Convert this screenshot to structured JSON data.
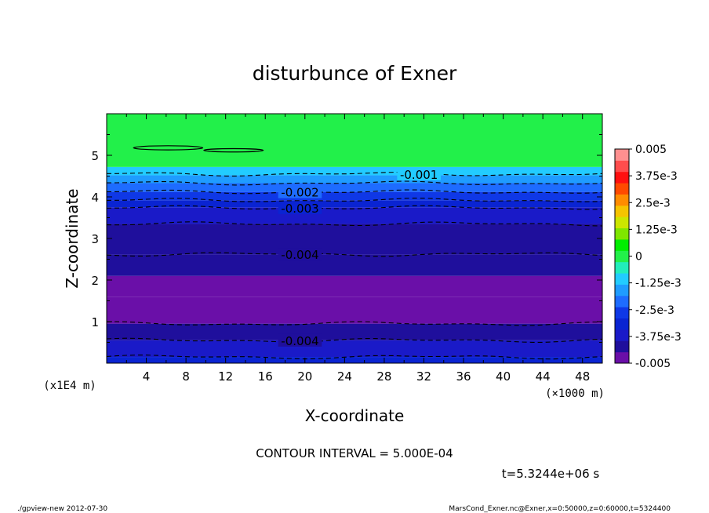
{
  "chart_data": {
    "type": "heatmap",
    "title": "disturbunce of Exner",
    "xlabel": "X-coordinate",
    "ylabel": "Z-coordinate",
    "x_unit": "(×1000 m)",
    "y_unit": "(x1E4 m)",
    "xlim": [
      0,
      50
    ],
    "ylim": [
      0,
      6
    ],
    "x_ticks": [
      "4",
      "8",
      "12",
      "16",
      "20",
      "24",
      "28",
      "32",
      "36",
      "40",
      "44",
      "48"
    ],
    "y_ticks": [
      "1",
      "2",
      "3",
      "4",
      "5"
    ],
    "grid": false,
    "colorbar": {
      "placement": "right",
      "range": [
        -0.005,
        0.005
      ],
      "labels": [
        "0.005",
        "3.75e-3",
        "2.5e-3",
        "1.25e-3",
        "0",
        "-1.25e-3",
        "-2.5e-3",
        "-3.75e-3",
        "-0.005"
      ],
      "colors": [
        "#6a0fa8",
        "#1f0f9c",
        "#1a1ac8",
        "#0a24d2",
        "#0f38e6",
        "#1e6cff",
        "#1f9cff",
        "#22ccff",
        "#22eebb",
        "#22f04a",
        "#00ee00",
        "#7fe600",
        "#cce600",
        "#f5c400",
        "#ff8c00",
        "#ff4a00",
        "#ff1010",
        "#ff4d4d",
        "#ff9090"
      ]
    },
    "bands": [
      {
        "z_min": 0.0,
        "z_max": 0.15,
        "value": -0.003
      },
      {
        "z_min": 0.15,
        "z_max": 0.55,
        "value": -0.0035
      },
      {
        "z_min": 0.55,
        "z_max": 0.95,
        "value": -0.004
      },
      {
        "z_min": 0.95,
        "z_max": 1.6,
        "value": -0.005
      },
      {
        "z_min": 1.6,
        "z_max": 2.1,
        "value": -0.0045
      },
      {
        "z_min": 2.1,
        "z_max": 2.62,
        "value": -0.0043
      },
      {
        "z_min": 2.62,
        "z_max": 3.35,
        "value": -0.004
      },
      {
        "z_min": 3.35,
        "z_max": 3.75,
        "value": -0.0035
      },
      {
        "z_min": 3.75,
        "z_max": 3.92,
        "value": -0.003
      },
      {
        "z_min": 3.92,
        "z_max": 4.12,
        "value": -0.0025
      },
      {
        "z_min": 4.12,
        "z_max": 4.33,
        "value": -0.002
      },
      {
        "z_min": 4.33,
        "z_max": 4.52,
        "value": -0.0015
      },
      {
        "z_min": 4.52,
        "z_max": 4.72,
        "value": -0.001
      },
      {
        "z_min": 4.72,
        "z_max": 6.0,
        "value": 0.0
      }
    ],
    "contours": [
      {
        "z": 4.55,
        "label": "-0.001",
        "label_x": 31.5
      },
      {
        "z": 4.12,
        "label": "-0.002",
        "label_x": 19.5
      },
      {
        "z": 3.74,
        "label": "-0.003",
        "label_x": 19.5
      },
      {
        "z": 2.62,
        "label": "-0.004",
        "label_x": 19.5
      },
      {
        "z": 0.55,
        "label": "-0.004",
        "label_x": 19.5
      },
      {
        "z": 4.33,
        "label": ""
      },
      {
        "z": 3.92,
        "label": ""
      },
      {
        "z": 3.35,
        "label": ""
      },
      {
        "z": 0.95,
        "label": ""
      },
      {
        "z": 0.15,
        "label": ""
      }
    ],
    "closed_contours": [
      {
        "x_center": 6.2,
        "z_center": 5.18,
        "x_radius": 3.5,
        "z_radius": 0.05
      },
      {
        "x_center": 12.8,
        "z_center": 5.12,
        "x_radius": 3.0,
        "z_radius": 0.04
      }
    ]
  },
  "contour_interval": "CONTOUR INTERVAL = 5.000E-04",
  "time_label": "t=5.3244e+06 s",
  "footer_left": "./gpview-new   2012-07-30",
  "footer_right": "MarsCond_Exner.nc@Exner,x=0:50000,z=0:60000,t=5324400"
}
